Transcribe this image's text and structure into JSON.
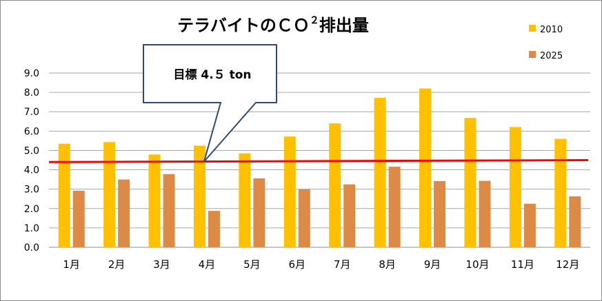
{
  "chart_data": {
    "type": "bar",
    "title": "テラバイトのＣＯ",
    "title_superscript": "２",
    "title_suffix": "排出量",
    "categories": [
      "1月",
      "2月",
      "3月",
      "4月",
      "5月",
      "6月",
      "7月",
      "8月",
      "9月",
      "10月",
      "11月",
      "12月"
    ],
    "series": [
      {
        "name": "2010",
        "color": "#FFC000",
        "values": [
          5.35,
          5.43,
          4.79,
          5.25,
          4.85,
          5.72,
          6.4,
          7.72,
          8.2,
          6.68,
          6.21,
          5.6
        ]
      },
      {
        "name": "2025",
        "color": "#DD8A46",
        "values": [
          2.92,
          3.5,
          3.78,
          1.88,
          3.56,
          2.99,
          3.25,
          4.16,
          3.42,
          3.43,
          2.25,
          2.63
        ]
      }
    ],
    "ylim": [
      0,
      9
    ],
    "yticks": [
      "0.0",
      "1.0",
      "2.0",
      "3.0",
      "4.0",
      "5.0",
      "6.0",
      "7.0",
      "8.0",
      "9.0"
    ],
    "grid": true,
    "legend_position": "top-right",
    "target_line": {
      "start_value": 4.4,
      "end_value": 4.5,
      "color": "#FF0000"
    },
    "callout": {
      "label": "目標 4.５ ton",
      "points_to_category": "4月"
    }
  }
}
